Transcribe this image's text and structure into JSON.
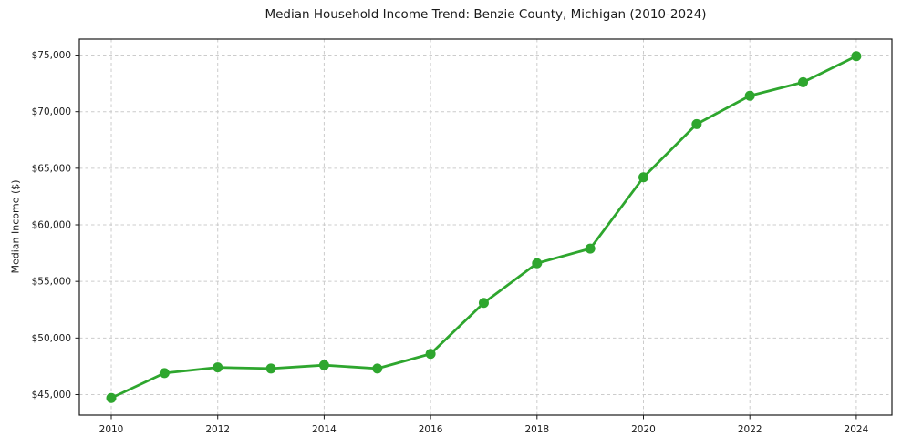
{
  "chart_data": {
    "type": "line",
    "title": "Median Household Income Trend: Benzie County, Michigan (2010-2024)",
    "xlabel": "",
    "ylabel": "Median Income ($)",
    "x": [
      2010,
      2011,
      2012,
      2013,
      2014,
      2015,
      2016,
      2017,
      2018,
      2019,
      2020,
      2021,
      2022,
      2023,
      2024
    ],
    "series": [
      {
        "name": "Median Household Income",
        "values": [
          44700,
          46900,
          47400,
          47300,
          47600,
          47300,
          48600,
          53100,
          56600,
          57900,
          64200,
          68900,
          71400,
          72600,
          74900
        ]
      }
    ],
    "xticks": [
      2010,
      2012,
      2014,
      2016,
      2018,
      2020,
      2022,
      2024
    ],
    "xtick_labels": [
      "2010",
      "2012",
      "2014",
      "2016",
      "2018",
      "2020",
      "2022",
      "2024"
    ],
    "yticks": [
      45000,
      50000,
      55000,
      60000,
      65000,
      70000,
      75000
    ],
    "ytick_labels": [
      "$45,000",
      "$50,000",
      "$55,000",
      "$60,000",
      "$65,000",
      "$70,000",
      "$75,000"
    ],
    "xlim": [
      2009.4,
      2024.67
    ],
    "ylim": [
      43190,
      76410
    ],
    "grid": true,
    "grid_style": "dashed",
    "legend_position": "none",
    "colors": {
      "line": "#2ea62e",
      "marker": "#2ea62e",
      "grid": "#cccccc",
      "spine": "#1a1a1a",
      "text": "#1a1a1a",
      "background": "#ffffff"
    }
  }
}
